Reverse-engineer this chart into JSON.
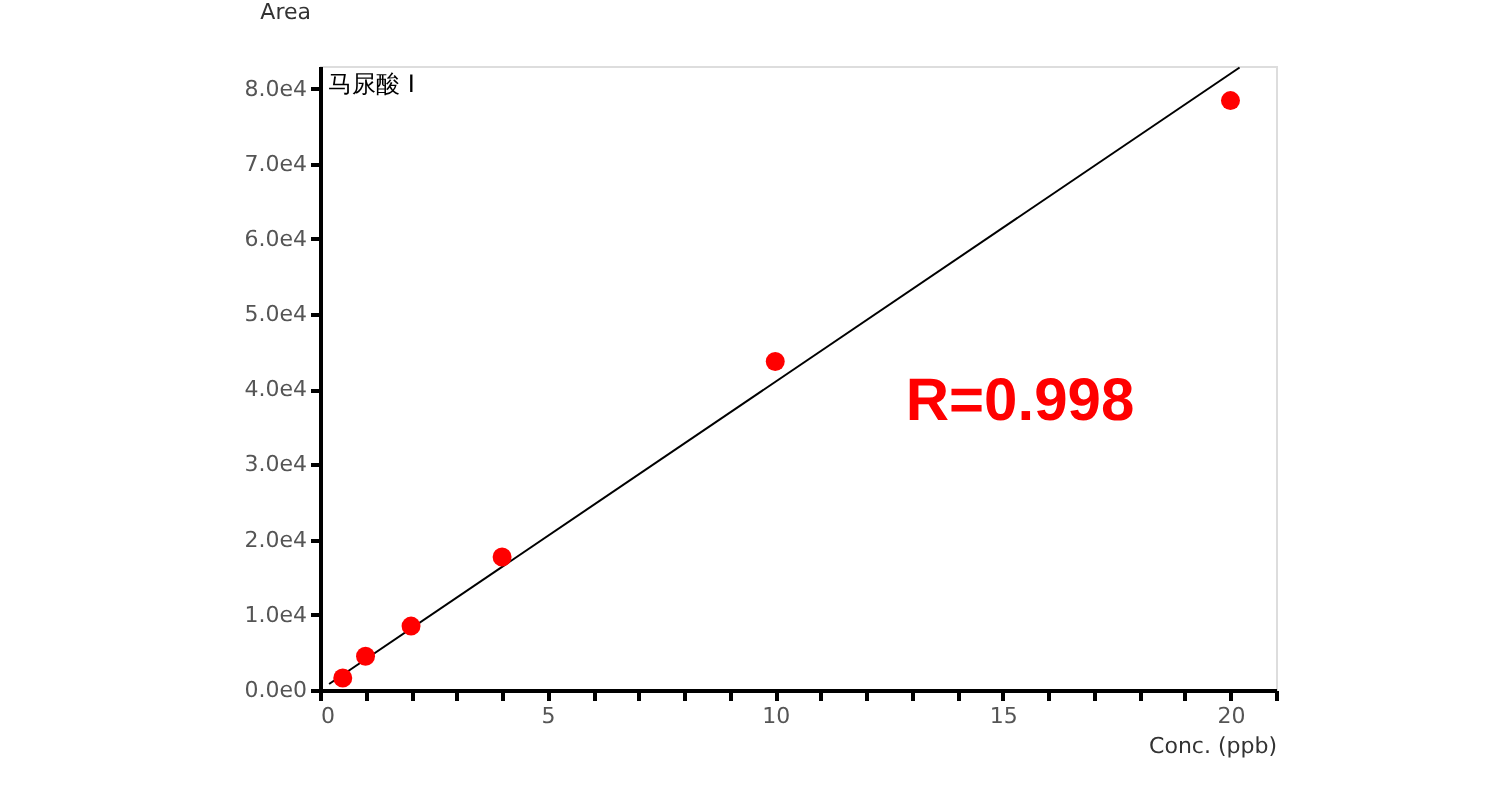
{
  "chart_data": {
    "type": "scatter",
    "title": "马尿酸 I",
    "xlabel": "Conc. (ppb)",
    "ylabel": "Area",
    "annotations": [
      "R=0.998"
    ],
    "grid": false,
    "marker": "circle",
    "xlim": [
      0,
      21
    ],
    "ylim": [
      0,
      83000
    ],
    "xticks": [
      0,
      {
        "value": 1,
        "label": null
      },
      {
        "value": 2,
        "label": null
      },
      {
        "value": 3,
        "label": null
      },
      {
        "value": 4,
        "label": null
      },
      5,
      {
        "value": 6,
        "label": null
      },
      {
        "value": 7,
        "label": null
      },
      {
        "value": 8,
        "label": null
      },
      {
        "value": 9,
        "label": null
      },
      10,
      {
        "value": 11,
        "label": null
      },
      {
        "value": 12,
        "label": null
      },
      {
        "value": 13,
        "label": null
      },
      {
        "value": 14,
        "label": null
      },
      15,
      {
        "value": 16,
        "label": null
      },
      {
        "value": 17,
        "label": null
      },
      {
        "value": 18,
        "label": null
      },
      {
        "value": 19,
        "label": null
      },
      20,
      {
        "value": 21,
        "label": null
      }
    ],
    "yticks": [
      {
        "value": 0,
        "label": "0.0e0"
      },
      {
        "value": 10000,
        "label": "1.0e4"
      },
      {
        "value": 20000,
        "label": "2.0e4"
      },
      {
        "value": 30000,
        "label": "3.0e4"
      },
      {
        "value": 40000,
        "label": "4.0e4"
      },
      {
        "value": 50000,
        "label": "5.0e4"
      },
      {
        "value": 60000,
        "label": "6.0e4"
      },
      {
        "value": 70000,
        "label": "7.0e4"
      },
      {
        "value": 80000,
        "label": "8.0e4"
      }
    ],
    "series": [
      {
        "type": "line",
        "color": "#000000",
        "line_style": "solid",
        "marker": "none",
        "x": [
          0.2,
          20.2
        ],
        "values": [
          800,
          82800
        ]
      },
      {
        "color": "#ff0000",
        "x": [
          0.5,
          1,
          2,
          4,
          10,
          20
        ],
        "values": [
          1600,
          4500,
          8500,
          17700,
          43700,
          78400
        ]
      }
    ]
  }
}
